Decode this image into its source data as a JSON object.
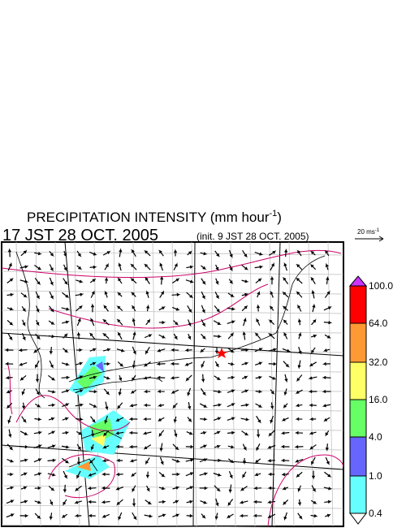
{
  "title": {
    "text": "PRECIPITATION INTENSITY (mm hour",
    "sup": "-1",
    "close": ")"
  },
  "time": "17 JST 28 OCT. 2005",
  "init": "(init. 9 JST 28 OCT. 2005)",
  "scale": {
    "text": "20 ms",
    "sup": "-1"
  },
  "colorbar": {
    "labels": [
      "100.0",
      "64.0",
      "32.0",
      "16.0",
      "4.0",
      "1.0",
      "0.4"
    ],
    "colors": [
      "#cc33ff",
      "#ff0000",
      "#ff9933",
      "#ffff66",
      "#66ff66",
      "#6666ff",
      "#66ffff",
      "#ffffff"
    ]
  }
}
